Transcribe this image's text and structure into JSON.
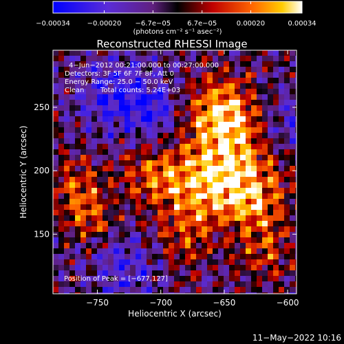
{
  "chart_data": {
    "type": "heatmap",
    "title": "Reconstructed RHESSI Image",
    "xlabel": "Heliocentric X (arcsec)",
    "ylabel": "Heliocentric Y (arcsec)",
    "xlim": [
      -785,
      -593
    ],
    "ylim": [
      103,
      295
    ],
    "x_ticks": [
      -750,
      -700,
      -650,
      -600
    ],
    "y_ticks": [
      150,
      200,
      250
    ],
    "x_tick_labels": [
      "−750",
      "−700",
      "−650",
      "−600"
    ],
    "y_tick_labels": [
      "150",
      "200",
      "250"
    ],
    "colorbar": {
      "range": [
        -0.00034,
        0.00034
      ],
      "ticks": [
        -0.00034,
        -0.0002,
        -6.7e-05,
        6.7e-05,
        0.0002,
        0.00034
      ],
      "tick_labels": [
        "−0.00034",
        "−0.00020",
        "−6.7e−05",
        "6.7e−05",
        "0.00020",
        "0.00034"
      ],
      "units": "(photons cm⁻² s⁻¹ asec⁻²)"
    },
    "annotations": [
      "4−Jun−2012 00:21:00.000 to 00:27:00.000",
      "Detectors: 3F 5F 6F 7F 8F, Att 0",
      "Energy Range: 25.0 − 50.0 keV",
      "Clean",
      "Total counts: 5.24E+03"
    ],
    "peak_label": "Position of Peak = [−677,127]",
    "peak_position": [
      -677,
      127
    ]
  },
  "footer": {
    "timestamp": "11−May−2022 10:16"
  }
}
